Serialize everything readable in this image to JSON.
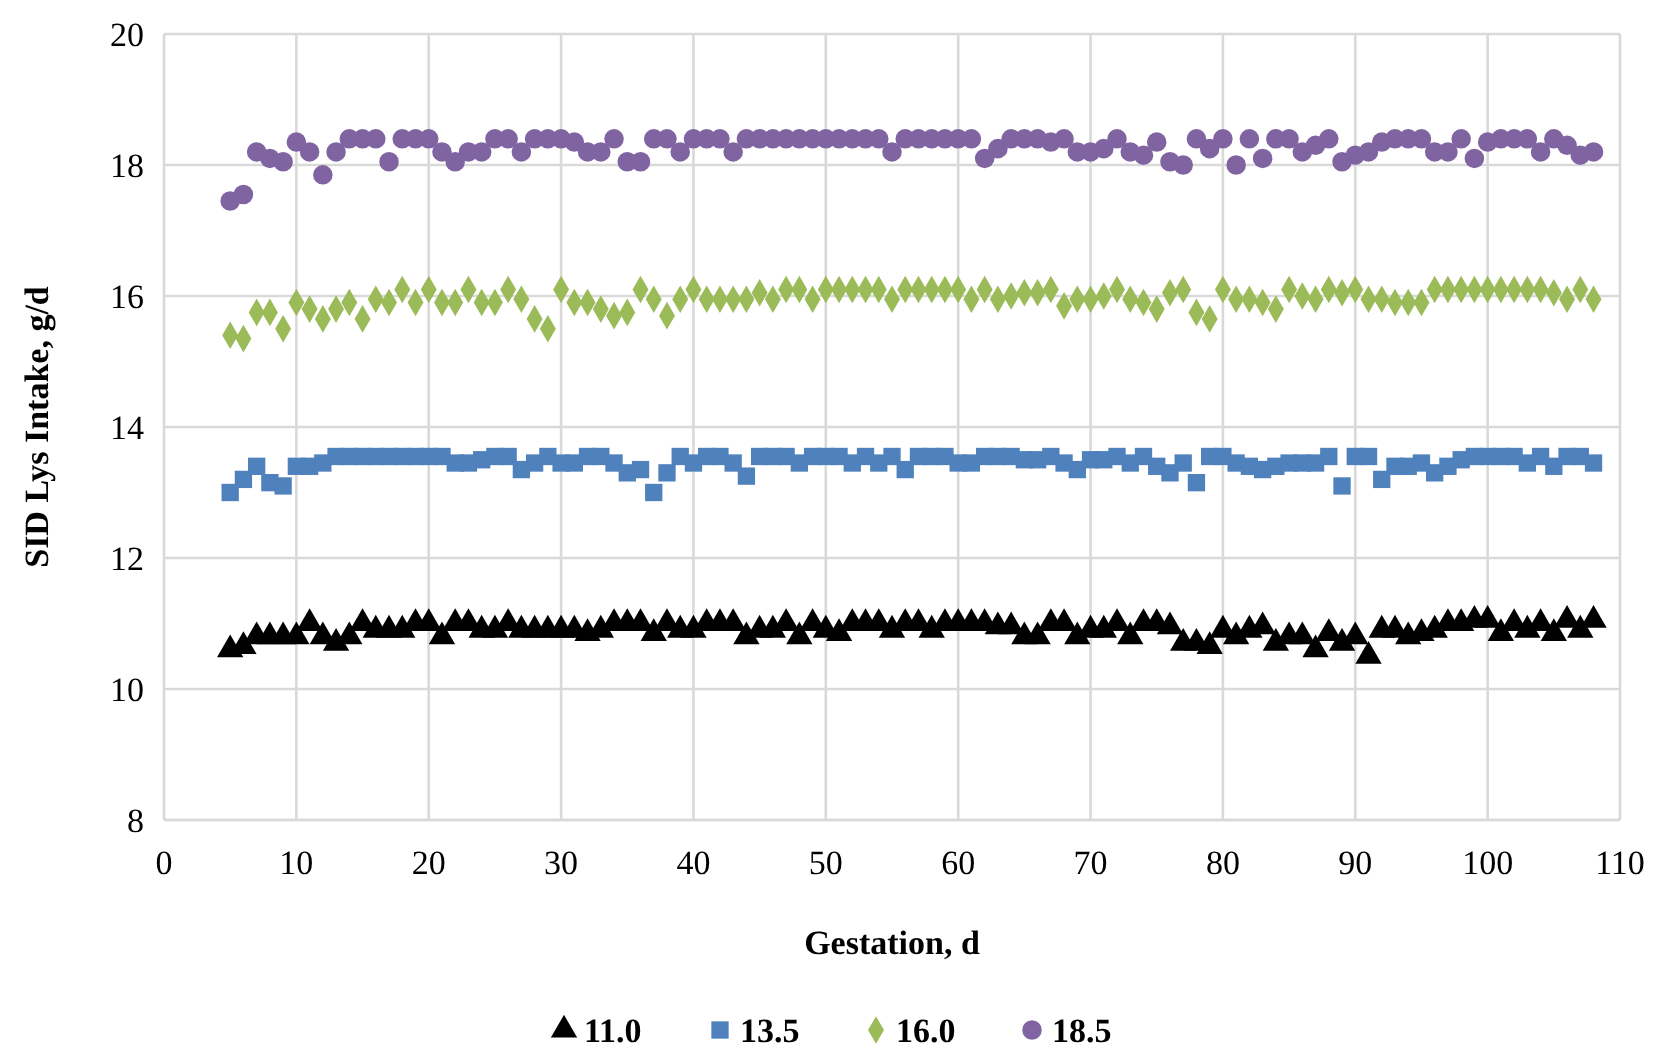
{
  "chart_data": {
    "type": "scatter",
    "xlabel": "Gestation, d",
    "ylabel": "SID Lys Intake, g/d",
    "x": [
      5,
      6,
      7,
      8,
      9,
      10,
      11,
      12,
      13,
      14,
      15,
      16,
      17,
      18,
      19,
      20,
      21,
      22,
      23,
      24,
      25,
      26,
      27,
      28,
      29,
      30,
      31,
      32,
      33,
      34,
      35,
      36,
      37,
      38,
      39,
      40,
      41,
      42,
      43,
      44,
      45,
      46,
      47,
      48,
      49,
      50,
      51,
      52,
      53,
      54,
      55,
      56,
      57,
      58,
      59,
      60,
      61,
      62,
      63,
      64,
      65,
      66,
      67,
      68,
      69,
      70,
      71,
      72,
      73,
      74,
      75,
      76,
      77,
      78,
      79,
      80,
      81,
      82,
      83,
      84,
      85,
      86,
      87,
      88,
      89,
      90,
      91,
      92,
      93,
      94,
      95,
      96,
      97,
      98,
      99,
      100,
      101,
      102,
      103,
      104,
      105,
      106,
      107,
      108
    ],
    "xlim": [
      0,
      110
    ],
    "xticks": [
      0,
      10,
      20,
      30,
      40,
      50,
      60,
      70,
      80,
      90,
      100,
      110
    ],
    "ylim": [
      8,
      20
    ],
    "yticks": [
      8,
      10,
      12,
      14,
      16,
      18,
      20
    ],
    "grid": true,
    "legend": "bottom",
    "series": [
      {
        "name": "11.0",
        "color": "#000000",
        "marker": "triangle",
        "values": [
          10.6,
          10.65,
          10.8,
          10.8,
          10.8,
          10.8,
          11.0,
          10.8,
          10.7,
          10.8,
          11.0,
          10.9,
          10.9,
          10.9,
          11.0,
          11.0,
          10.8,
          11.0,
          11.0,
          10.9,
          10.9,
          11.0,
          10.9,
          10.9,
          10.9,
          10.9,
          10.9,
          10.85,
          10.9,
          11.0,
          11.0,
          11.0,
          10.85,
          11.0,
          10.9,
          10.9,
          11.0,
          11.0,
          11.0,
          10.8,
          10.9,
          10.9,
          11.0,
          10.8,
          11.0,
          10.9,
          10.85,
          11.0,
          11.0,
          11.0,
          10.9,
          11.0,
          11.0,
          10.9,
          11.0,
          11.0,
          11.0,
          11.0,
          10.95,
          10.95,
          10.8,
          10.8,
          11.0,
          11.0,
          10.8,
          10.9,
          10.9,
          11.0,
          10.8,
          11.0,
          11.0,
          10.95,
          10.7,
          10.7,
          10.65,
          10.9,
          10.8,
          10.9,
          10.95,
          10.7,
          10.8,
          10.8,
          10.6,
          10.85,
          10.7,
          10.8,
          10.5,
          10.9,
          10.9,
          10.8,
          10.85,
          10.9,
          11.0,
          11.0,
          11.05,
          11.05,
          10.85,
          11.0,
          10.9,
          11.0,
          10.85,
          11.05,
          10.9,
          11.05
        ]
      },
      {
        "name": "13.5",
        "color": "#4f81bd",
        "marker": "square",
        "values": [
          13.0,
          13.2,
          13.4,
          13.15,
          13.1,
          13.4,
          13.4,
          13.45,
          13.55,
          13.55,
          13.55,
          13.55,
          13.55,
          13.55,
          13.55,
          13.55,
          13.55,
          13.45,
          13.45,
          13.5,
          13.55,
          13.55,
          13.35,
          13.45,
          13.55,
          13.45,
          13.45,
          13.55,
          13.55,
          13.45,
          13.3,
          13.35,
          13.0,
          13.3,
          13.55,
          13.45,
          13.55,
          13.55,
          13.45,
          13.25,
          13.55,
          13.55,
          13.55,
          13.45,
          13.55,
          13.55,
          13.55,
          13.45,
          13.55,
          13.45,
          13.55,
          13.35,
          13.55,
          13.55,
          13.55,
          13.45,
          13.45,
          13.55,
          13.55,
          13.55,
          13.5,
          13.5,
          13.55,
          13.45,
          13.35,
          13.5,
          13.5,
          13.55,
          13.45,
          13.55,
          13.4,
          13.3,
          13.45,
          13.15,
          13.55,
          13.55,
          13.45,
          13.4,
          13.35,
          13.4,
          13.45,
          13.45,
          13.45,
          13.55,
          13.1,
          13.55,
          13.55,
          13.2,
          13.4,
          13.4,
          13.45,
          13.3,
          13.4,
          13.5,
          13.55,
          13.55,
          13.55,
          13.55,
          13.45,
          13.55,
          13.4,
          13.55,
          13.55,
          13.45
        ]
      },
      {
        "name": "16.0",
        "color": "#9bbb59",
        "marker": "diamond",
        "values": [
          15.4,
          15.35,
          15.75,
          15.75,
          15.5,
          15.9,
          15.8,
          15.65,
          15.8,
          15.9,
          15.65,
          15.95,
          15.9,
          16.1,
          15.9,
          16.1,
          15.9,
          15.9,
          16.1,
          15.9,
          15.9,
          16.1,
          15.95,
          15.65,
          15.5,
          16.1,
          15.9,
          15.9,
          15.8,
          15.7,
          15.75,
          16.1,
          15.95,
          15.7,
          15.95,
          16.1,
          15.95,
          15.95,
          15.95,
          15.95,
          16.05,
          15.95,
          16.1,
          16.1,
          15.95,
          16.1,
          16.1,
          16.1,
          16.1,
          16.1,
          15.95,
          16.1,
          16.1,
          16.1,
          16.1,
          16.1,
          15.95,
          16.1,
          15.95,
          16.0,
          16.05,
          16.05,
          16.1,
          15.85,
          15.95,
          15.95,
          16.0,
          16.1,
          15.95,
          15.9,
          15.8,
          16.05,
          16.1,
          15.75,
          15.65,
          16.1,
          15.95,
          15.95,
          15.9,
          15.8,
          16.1,
          16.0,
          15.95,
          16.1,
          16.05,
          16.1,
          15.95,
          15.95,
          15.9,
          15.9,
          15.9,
          16.1,
          16.1,
          16.1,
          16.1,
          16.1,
          16.1,
          16.1,
          16.1,
          16.1,
          16.05,
          15.95,
          16.1,
          15.95
        ]
      },
      {
        "name": "18.5",
        "color": "#8064a2",
        "marker": "circle",
        "values": [
          17.45,
          17.55,
          18.2,
          18.1,
          18.05,
          18.35,
          18.2,
          17.85,
          18.2,
          18.4,
          18.4,
          18.4,
          18.05,
          18.4,
          18.4,
          18.4,
          18.2,
          18.05,
          18.2,
          18.2,
          18.4,
          18.4,
          18.2,
          18.4,
          18.4,
          18.4,
          18.35,
          18.2,
          18.2,
          18.4,
          18.05,
          18.05,
          18.4,
          18.4,
          18.2,
          18.4,
          18.4,
          18.4,
          18.2,
          18.4,
          18.4,
          18.4,
          18.4,
          18.4,
          18.4,
          18.4,
          18.4,
          18.4,
          18.4,
          18.4,
          18.2,
          18.4,
          18.4,
          18.4,
          18.4,
          18.4,
          18.4,
          18.1,
          18.25,
          18.4,
          18.4,
          18.4,
          18.35,
          18.4,
          18.2,
          18.2,
          18.25,
          18.4,
          18.2,
          18.15,
          18.35,
          18.05,
          18.0,
          18.4,
          18.25,
          18.4,
          18.0,
          18.4,
          18.1,
          18.4,
          18.4,
          18.2,
          18.3,
          18.4,
          18.05,
          18.15,
          18.2,
          18.35,
          18.4,
          18.4,
          18.4,
          18.2,
          18.2,
          18.4,
          18.1,
          18.35,
          18.4,
          18.4,
          18.4,
          18.2,
          18.4,
          18.3,
          18.15,
          18.2
        ]
      }
    ]
  }
}
